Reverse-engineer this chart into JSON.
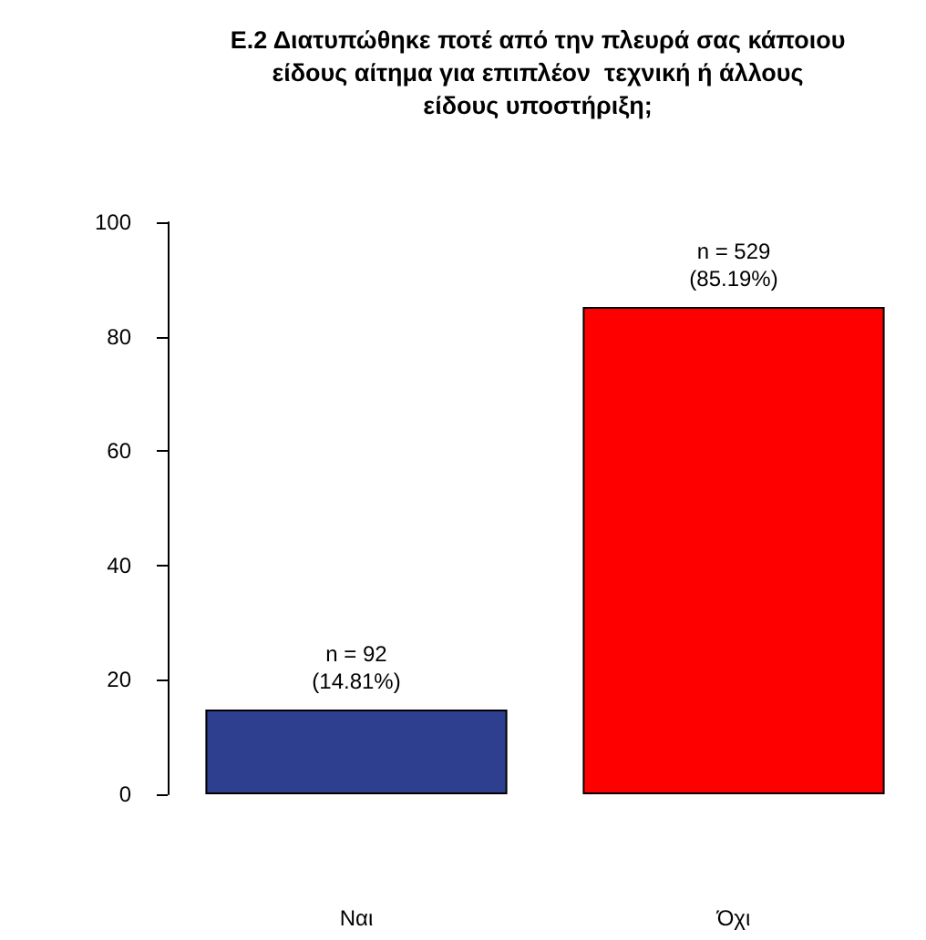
{
  "chart_data": {
    "type": "bar",
    "title": "Ε.2 Διατυπώθηκε ποτέ από την πλευρά σας κάποιου\nείδους αίτημα για επιπλέον  τεχνική ή άλλους\nείδους υποστήριξη;",
    "categories": [
      "Ναι",
      "Όχι"
    ],
    "values": [
      14.81,
      85.19
    ],
    "colors": [
      "#2e3f8f",
      "#ff0000"
    ],
    "value_labels": [
      "n = 92\n(14.81%)",
      "n = 529\n(85.19%)"
    ],
    "ylim": [
      0,
      100
    ],
    "yticks": [
      0,
      20,
      40,
      60,
      80,
      100
    ],
    "grid": false
  }
}
